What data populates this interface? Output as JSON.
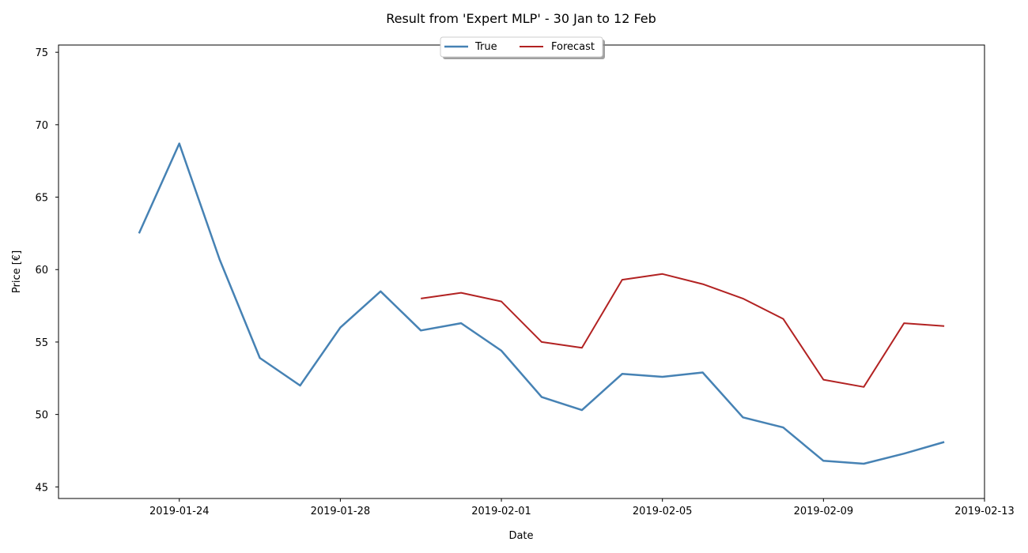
{
  "chart_data": {
    "type": "line",
    "title": "Result from 'Expert MLP' - 30 Jan to 12 Feb",
    "xlabel": "Date",
    "ylabel": "Price [€]",
    "xlim": [
      "2019-01-21",
      "2019-02-13"
    ],
    "ylim": [
      44.2,
      75.5
    ],
    "xticks": [
      "2019-01-24",
      "2019-01-28",
      "2019-02-01",
      "2019-02-05",
      "2019-02-09",
      "2019-02-13"
    ],
    "yticks": [
      45,
      50,
      55,
      60,
      65,
      70,
      75
    ],
    "grid": false,
    "legend_placement": "top-center",
    "series": [
      {
        "name": "True",
        "color": "#4682b4",
        "x": [
          "2019-01-23",
          "2019-01-24",
          "2019-01-25",
          "2019-01-26",
          "2019-01-27",
          "2019-01-28",
          "2019-01-29",
          "2019-01-30",
          "2019-01-31",
          "2019-02-01",
          "2019-02-02",
          "2019-02-03",
          "2019-02-04",
          "2019-02-05",
          "2019-02-06",
          "2019-02-07",
          "2019-02-08",
          "2019-02-09",
          "2019-02-10",
          "2019-02-11",
          "2019-02-12"
        ],
        "values": [
          62.5,
          68.7,
          60.7,
          53.9,
          52.0,
          56.0,
          58.5,
          55.8,
          56.3,
          54.4,
          51.2,
          50.3,
          52.8,
          52.6,
          52.9,
          49.8,
          49.1,
          46.8,
          46.6,
          47.3,
          48.1
        ]
      },
      {
        "name": "Forecast",
        "color": "#b22222",
        "x": [
          "2019-01-30",
          "2019-01-31",
          "2019-02-01",
          "2019-02-02",
          "2019-02-03",
          "2019-02-04",
          "2019-02-05",
          "2019-02-06",
          "2019-02-07",
          "2019-02-08",
          "2019-02-09",
          "2019-02-10",
          "2019-02-11",
          "2019-02-12"
        ],
        "values": [
          58.0,
          58.4,
          57.8,
          55.0,
          54.6,
          59.3,
          59.7,
          59.0,
          58.0,
          56.6,
          52.4,
          51.9,
          56.3,
          56.1
        ]
      }
    ]
  }
}
